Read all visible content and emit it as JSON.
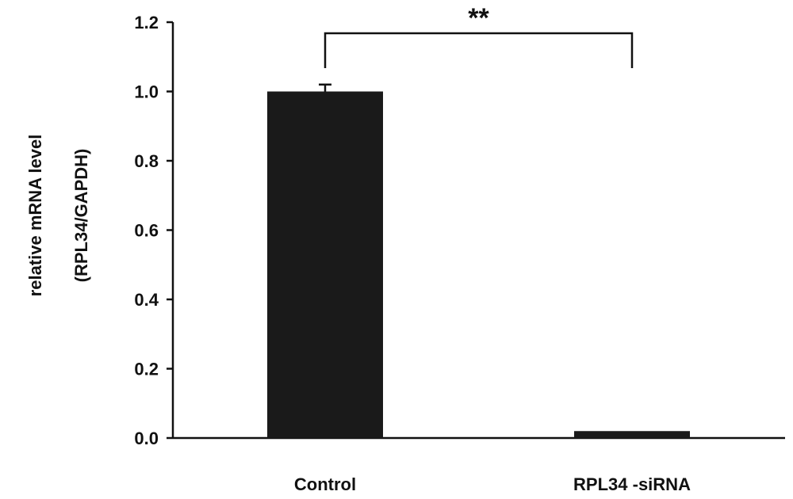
{
  "chart_data": {
    "type": "bar",
    "categories": [
      "Control",
      "RPL34 -siRNA"
    ],
    "values": [
      1.0,
      0.02
    ],
    "error": [
      0.02,
      0
    ],
    "ylabel_lines": [
      "relative mRNA level",
      "(RPL34/GAPDH)"
    ],
    "xlabel": "",
    "title": "",
    "ylim": [
      0,
      1.2
    ],
    "yticks": [
      "0.0",
      "0.2",
      "0.4",
      "0.6",
      "0.8",
      "1.0",
      "1.2"
    ],
    "significance": "**",
    "bar_color": "#1a1a1a",
    "grid": false
  }
}
